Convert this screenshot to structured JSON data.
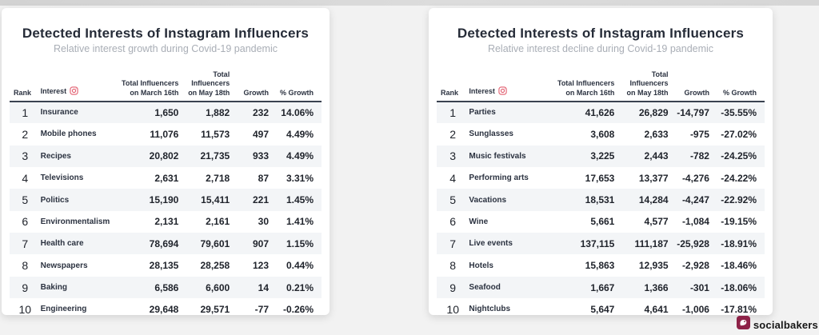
{
  "colors": {
    "page_background": "#f2f2f2",
    "card_background": "#ffffff",
    "title_text": "#262c38",
    "subtitle_text": "#a9aeb6",
    "header_rule": "#3a4250",
    "row_stripe": "#f3f5f7",
    "instagram_icon": "#e25d6e",
    "brand_icon_bg": "#8e2248"
  },
  "footer": {
    "brand": "socialbakers"
  },
  "chart_data": [
    {
      "type": "table",
      "title": "Detected Interests of Instagram Influencers",
      "subtitle": "Relative interest growth during Covid-19 pandemic",
      "columns": [
        "Rank",
        "Interest",
        "Total Influencers\non March 16th",
        "Total Influencers\non May 18th",
        "Growth",
        "% Growth"
      ],
      "rows": [
        [
          "1",
          "Insurance",
          "1,650",
          "1,882",
          "232",
          "14.06%"
        ],
        [
          "2",
          "Mobile phones",
          "11,076",
          "11,573",
          "497",
          "4.49%"
        ],
        [
          "3",
          "Recipes",
          "20,802",
          "21,735",
          "933",
          "4.49%"
        ],
        [
          "4",
          "Televisions",
          "2,631",
          "2,718",
          "87",
          "3.31%"
        ],
        [
          "5",
          "Politics",
          "15,190",
          "15,411",
          "221",
          "1.45%"
        ],
        [
          "6",
          "Environmentalism",
          "2,131",
          "2,161",
          "30",
          "1.41%"
        ],
        [
          "7",
          "Health care",
          "78,694",
          "79,601",
          "907",
          "1.15%"
        ],
        [
          "8",
          "Newspapers",
          "28,135",
          "28,258",
          "123",
          "0.44%"
        ],
        [
          "9",
          "Baking",
          "6,586",
          "6,600",
          "14",
          "0.21%"
        ],
        [
          "10",
          "Engineering",
          "29,648",
          "29,571",
          "-77",
          "-0.26%"
        ]
      ]
    },
    {
      "type": "table",
      "title": "Detected Interests of Instagram Influencers",
      "subtitle": "Relative interest decline during Covid-19 pandemic",
      "columns": [
        "Rank",
        "Interest",
        "Total Influencers\non March 16th",
        "Total Influencers\non May 18th",
        "Growth",
        "% Growth"
      ],
      "rows": [
        [
          "1",
          "Parties",
          "41,626",
          "26,829",
          "-14,797",
          "-35.55%"
        ],
        [
          "2",
          "Sunglasses",
          "3,608",
          "2,633",
          "-975",
          "-27.02%"
        ],
        [
          "3",
          "Music festivals",
          "3,225",
          "2,443",
          "-782",
          "-24.25%"
        ],
        [
          "4",
          "Performing arts",
          "17,653",
          "13,377",
          "-4,276",
          "-24.22%"
        ],
        [
          "5",
          "Vacations",
          "18,531",
          "14,284",
          "-4,247",
          "-22.92%"
        ],
        [
          "6",
          "Wine",
          "5,661",
          "4,577",
          "-1,084",
          "-19.15%"
        ],
        [
          "7",
          "Live events",
          "137,115",
          "111,187",
          "-25,928",
          "-18.91%"
        ],
        [
          "8",
          "Hotels",
          "15,863",
          "12,935",
          "-2,928",
          "-18.46%"
        ],
        [
          "9",
          "Seafood",
          "1,667",
          "1,366",
          "-301",
          "-18.06%"
        ],
        [
          "10",
          "Nightclubs",
          "5,647",
          "4,641",
          "-1,006",
          "-17.81%"
        ]
      ]
    }
  ]
}
